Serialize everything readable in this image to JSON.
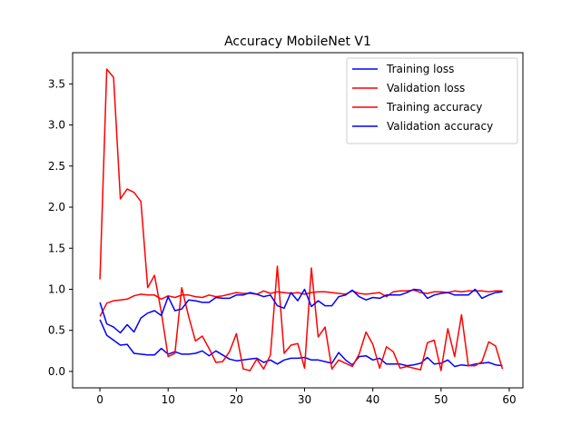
{
  "chart_data": {
    "type": "line",
    "title": "Accuracy MobileNet V1",
    "xlabel": "",
    "ylabel": "",
    "xlim": [
      -4,
      62
    ],
    "ylim": [
      -0.2,
      3.88
    ],
    "xticks": [
      0,
      10,
      20,
      30,
      40,
      50,
      60
    ],
    "yticks": [
      0.0,
      0.5,
      1.0,
      1.5,
      2.0,
      2.5,
      3.0,
      3.5
    ],
    "ytick_labels": [
      "0.0",
      "0.5",
      "1.0",
      "1.5",
      "2.0",
      "2.5",
      "3.0",
      "3.5"
    ],
    "grid": false,
    "legend_position": "top-right",
    "x": [
      0,
      1,
      2,
      3,
      4,
      5,
      6,
      7,
      8,
      9,
      10,
      11,
      12,
      13,
      14,
      15,
      16,
      17,
      18,
      19,
      20,
      21,
      22,
      23,
      24,
      25,
      26,
      27,
      28,
      29,
      30,
      31,
      32,
      33,
      34,
      35,
      36,
      37,
      38,
      39,
      40,
      41,
      42,
      43,
      44,
      45,
      46,
      47,
      48,
      49,
      50,
      51,
      52,
      53,
      54,
      55,
      56,
      57,
      58,
      59
    ],
    "series": [
      {
        "name": "Training loss",
        "color": "#0000ff",
        "values": [
          0.63,
          0.44,
          0.38,
          0.32,
          0.33,
          0.22,
          0.21,
          0.2,
          0.2,
          0.28,
          0.21,
          0.24,
          0.21,
          0.21,
          0.22,
          0.25,
          0.19,
          0.25,
          0.2,
          0.15,
          0.13,
          0.14,
          0.15,
          0.16,
          0.11,
          0.14,
          0.09,
          0.14,
          0.16,
          0.16,
          0.17,
          0.14,
          0.14,
          0.12,
          0.1,
          0.23,
          0.14,
          0.08,
          0.18,
          0.19,
          0.14,
          0.16,
          0.09,
          0.09,
          0.09,
          0.07,
          0.08,
          0.1,
          0.17,
          0.09,
          0.1,
          0.14,
          0.06,
          0.08,
          0.07,
          0.09,
          0.1,
          0.11,
          0.08,
          0.07
        ]
      },
      {
        "name": "Validation loss",
        "color": "#ff0000",
        "values": [
          1.12,
          3.68,
          3.58,
          2.1,
          2.22,
          2.18,
          2.07,
          1.02,
          1.17,
          0.72,
          0.18,
          0.22,
          1.02,
          0.67,
          0.37,
          0.43,
          0.28,
          0.11,
          0.12,
          0.24,
          0.46,
          0.03,
          0.01,
          0.15,
          0.03,
          0.2,
          1.28,
          0.22,
          0.32,
          0.34,
          0.04,
          1.26,
          0.42,
          0.54,
          0.03,
          0.14,
          0.1,
          0.06,
          0.21,
          0.48,
          0.33,
          0.04,
          0.3,
          0.24,
          0.04,
          0.06,
          0.04,
          0.02,
          0.35,
          0.38,
          0.01,
          0.52,
          0.18,
          0.69,
          0.07,
          0.07,
          0.12,
          0.36,
          0.31,
          0.03
        ]
      },
      {
        "name": "Training accuracy",
        "color": "#ff0000",
        "values": [
          0.67,
          0.83,
          0.86,
          0.87,
          0.88,
          0.92,
          0.94,
          0.93,
          0.93,
          0.88,
          0.92,
          0.9,
          0.93,
          0.93,
          0.91,
          0.9,
          0.93,
          0.91,
          0.92,
          0.94,
          0.96,
          0.95,
          0.95,
          0.94,
          0.98,
          0.95,
          0.97,
          0.96,
          0.95,
          0.96,
          0.94,
          0.96,
          0.97,
          0.97,
          0.96,
          0.95,
          0.94,
          0.98,
          0.95,
          0.94,
          0.95,
          0.96,
          0.91,
          0.97,
          0.98,
          0.98,
          0.99,
          0.96,
          0.95,
          0.97,
          0.97,
          0.96,
          0.98,
          0.97,
          0.98,
          0.98,
          0.98,
          0.97,
          0.98,
          0.98
        ]
      },
      {
        "name": "Validation accuracy",
        "color": "#0000ff",
        "values": [
          0.84,
          0.58,
          0.54,
          0.47,
          0.57,
          0.48,
          0.65,
          0.71,
          0.74,
          0.68,
          0.91,
          0.74,
          0.76,
          0.87,
          0.86,
          0.84,
          0.84,
          0.9,
          0.89,
          0.89,
          0.93,
          0.93,
          0.96,
          0.94,
          0.91,
          0.93,
          0.8,
          0.77,
          0.96,
          0.86,
          1.0,
          0.79,
          0.86,
          0.8,
          0.8,
          0.91,
          0.93,
          0.99,
          0.91,
          0.87,
          0.9,
          0.89,
          0.93,
          0.93,
          0.93,
          0.96,
          1.0,
          0.99,
          0.89,
          0.93,
          0.95,
          0.96,
          0.93,
          0.93,
          0.93,
          1.0,
          0.89,
          0.93,
          0.96,
          0.97
        ]
      }
    ]
  }
}
